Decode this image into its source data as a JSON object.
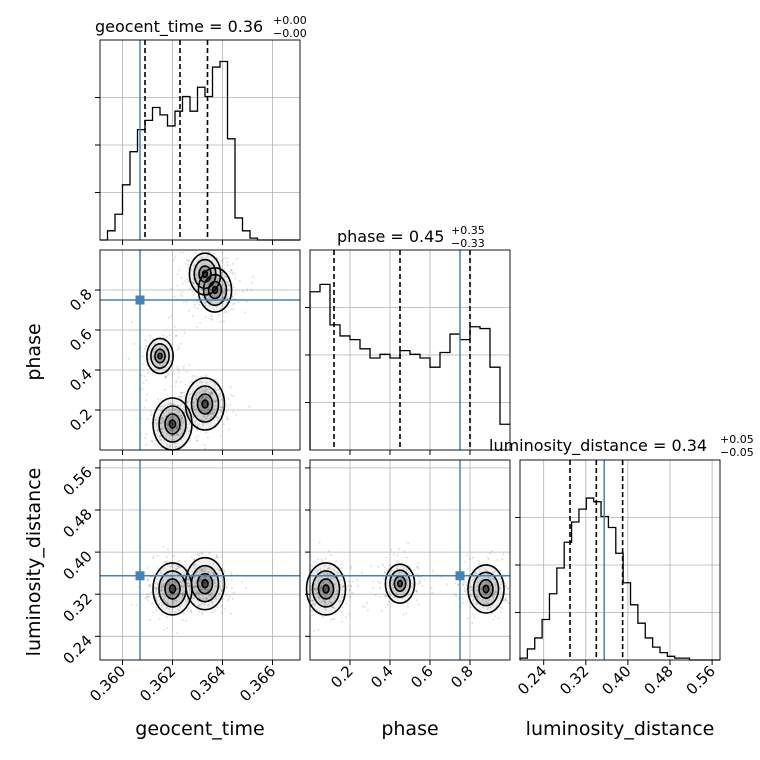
{
  "chart_data": {
    "type": "corner",
    "parameters": [
      "geocent_time",
      "phase",
      "luminosity_distance"
    ],
    "titles": [
      {
        "param": "geocent_time",
        "text": "geocent_time = 0.36",
        "plus": "+0.00",
        "minus": "−0.00"
      },
      {
        "param": "phase",
        "text": "phase = 0.45",
        "plus": "+0.35",
        "minus": "−0.33"
      },
      {
        "param": "luminosity_distance",
        "text": "luminosity_distance = 0.34",
        "plus": "+0.05",
        "minus": "−0.05"
      }
    ],
    "ranges": {
      "geocent_time": [
        0.3591,
        0.3671
      ],
      "phase": [
        0.0,
        1.0
      ],
      "luminosity_distance": [
        0.195,
        0.575
      ]
    },
    "ticks": {
      "geocent_time": [
        "0.360",
        "0.362",
        "0.364",
        "0.366"
      ],
      "phase": [
        "0.2",
        "0.4",
        "0.6",
        "0.8"
      ],
      "luminosity_distance": [
        "0.24",
        "0.32",
        "0.40",
        "0.48",
        "0.56"
      ]
    },
    "truths": {
      "geocent_time": 0.3607,
      "phase": 0.75,
      "luminosity_distance": 0.355
    },
    "quantiles": {
      "geocent_time": [
        0.3609,
        0.3623,
        0.3634
      ],
      "phase": [
        0.12,
        0.45,
        0.8
      ],
      "luminosity_distance": [
        0.29,
        0.34,
        0.39
      ]
    },
    "histograms": {
      "geocent_time": {
        "edges": [
          0.3591,
          0.3594,
          0.3597,
          0.36,
          0.3603,
          0.3606,
          0.3609,
          0.3612,
          0.3615,
          0.3618,
          0.3621,
          0.3624,
          0.3627,
          0.363,
          0.3633,
          0.3636,
          0.3639,
          0.3642,
          0.3645,
          0.3648,
          0.3651,
          0.3654,
          0.3657,
          0.366,
          0.3663,
          0.3666,
          0.3669,
          0.3671
        ],
        "counts": [
          0,
          0.05,
          0.14,
          0.3,
          0.48,
          0.6,
          0.65,
          0.72,
          0.68,
          0.62,
          0.7,
          0.78,
          0.7,
          0.83,
          0.78,
          0.94,
          0.97,
          0.55,
          0.12,
          0.05,
          0.01,
          0,
          0,
          0,
          0,
          0,
          0
        ]
      },
      "phase": {
        "edges": [
          0,
          0.05,
          0.1,
          0.15,
          0.2,
          0.25,
          0.3,
          0.35,
          0.4,
          0.45,
          0.5,
          0.55,
          0.6,
          0.65,
          0.7,
          0.75,
          0.8,
          0.85,
          0.9,
          0.95,
          1.0
        ],
        "counts": [
          0.86,
          0.9,
          0.68,
          0.62,
          0.6,
          0.55,
          0.5,
          0.52,
          0.5,
          0.54,
          0.52,
          0.5,
          0.45,
          0.53,
          0.63,
          0.6,
          0.67,
          0.66,
          0.45,
          0.14
        ]
      },
      "luminosity_distance": {
        "edges": [
          0.195,
          0.209,
          0.223,
          0.237,
          0.251,
          0.265,
          0.279,
          0.293,
          0.307,
          0.321,
          0.335,
          0.349,
          0.363,
          0.377,
          0.391,
          0.405,
          0.419,
          0.433,
          0.447,
          0.461,
          0.475,
          0.489,
          0.503,
          0.517,
          0.531,
          0.545,
          0.559,
          0.575
        ],
        "counts": [
          0.01,
          0.06,
          0.12,
          0.22,
          0.36,
          0.5,
          0.64,
          0.75,
          0.82,
          0.88,
          0.86,
          0.78,
          0.72,
          0.58,
          0.42,
          0.3,
          0.2,
          0.12,
          0.07,
          0.04,
          0.02,
          0.01,
          0.01,
          0,
          0,
          0,
          0
        ]
      }
    },
    "blobs_2d": {
      "geocent_time__phase": [
        {
          "x": 0.362,
          "y": 0.13,
          "w": 1.0
        },
        {
          "x": 0.3633,
          "y": 0.23,
          "w": 1.0
        },
        {
          "x": 0.3637,
          "y": 0.8,
          "w": 0.7
        },
        {
          "x": 0.3633,
          "y": 0.88,
          "w": 0.6
        },
        {
          "x": 0.3615,
          "y": 0.47,
          "w": 0.35
        }
      ],
      "geocent_time__luminosity_distance": [
        {
          "x": 0.362,
          "y": 0.33,
          "w": 1.0
        },
        {
          "x": 0.3633,
          "y": 0.34,
          "w": 1.0
        }
      ],
      "phase__luminosity_distance": [
        {
          "x": 0.08,
          "y": 0.33,
          "w": 1.0
        },
        {
          "x": 0.88,
          "y": 0.33,
          "w": 0.85
        },
        {
          "x": 0.45,
          "y": 0.34,
          "w": 0.5
        }
      ]
    },
    "truth_color": "#4682b4",
    "grid": true
  }
}
